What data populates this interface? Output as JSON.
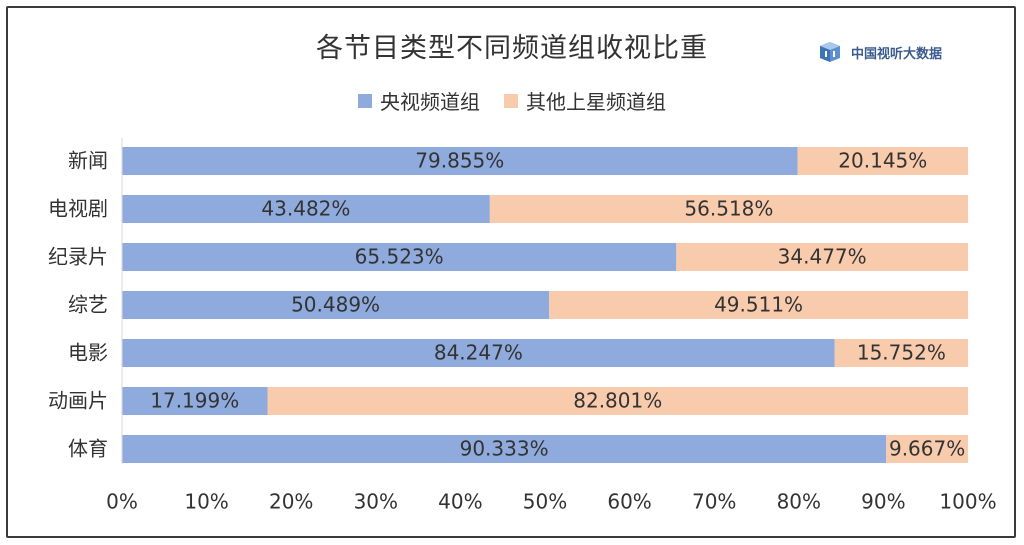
{
  "chart_data": {
    "type": "bar",
    "orientation": "horizontal",
    "stacked": true,
    "title": "各节目类型不同频道组收视比重",
    "categories": [
      "新闻",
      "电视剧",
      "纪录片",
      "综艺",
      "电影",
      "动画片",
      "体育"
    ],
    "series": [
      {
        "name": "央视频道组",
        "color": "#8faadc",
        "values": [
          79.855,
          43.482,
          65.523,
          50.489,
          84.247,
          17.199,
          90.333
        ],
        "labels": [
          "79.855%",
          "43.482%",
          "65.523%",
          "50.489%",
          "84.247%",
          "17.199%",
          "90.333%"
        ]
      },
      {
        "name": "其他上星频道组",
        "color": "#f8cbad",
        "values": [
          20.145,
          56.518,
          34.477,
          49.511,
          15.752,
          82.801,
          9.667
        ],
        "labels": [
          "20.145%",
          "56.518%",
          "34.477%",
          "49.511%",
          "15.752%",
          "82.801%",
          "9.667%"
        ]
      }
    ],
    "xlim": [
      0,
      100
    ],
    "xticks": [
      "0%",
      "10%",
      "20%",
      "30%",
      "40%",
      "50%",
      "60%",
      "70%",
      "80%",
      "90%",
      "100%"
    ],
    "legend_position": "top",
    "grid": false
  },
  "brand": {
    "text": "中国视听大数据",
    "icon": "cube-logo-icon"
  }
}
